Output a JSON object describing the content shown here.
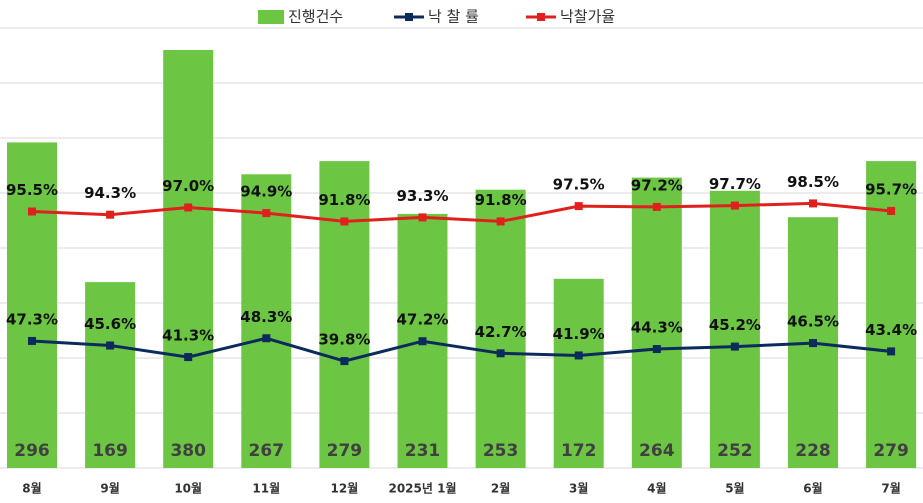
{
  "chart_data": {
    "type": "bar-line",
    "categories": [
      "8월",
      "9월",
      "10월",
      "11월",
      "12월",
      "2025년 1월",
      "2월",
      "3월",
      "4월",
      "5월",
      "6월",
      "7월"
    ],
    "series": [
      {
        "name": "진행건수",
        "type": "bar",
        "color": "#6cc644",
        "axis": "y",
        "values": [
          296,
          169,
          380,
          267,
          279,
          231,
          253,
          172,
          264,
          252,
          228,
          279
        ]
      },
      {
        "name": "낙 찰 률",
        "type": "line",
        "color": "#0d2a5c",
        "axis": "y2",
        "values": [
          47.3,
          45.6,
          41.3,
          48.3,
          39.8,
          47.2,
          42.7,
          41.9,
          44.3,
          45.2,
          46.5,
          43.4
        ],
        "value_labels": [
          "47.3%",
          "45.6%",
          "41.3%",
          "48.3%",
          "39.8%",
          "47.2%",
          "42.7%",
          "41.9%",
          "44.3%",
          "45.2%",
          "46.5%",
          "43.4%"
        ]
      },
      {
        "name": "낙찰가율",
        "type": "line",
        "color": "#e0201c",
        "axis": "y2",
        "values": [
          95.5,
          94.3,
          97.0,
          94.9,
          91.8,
          93.3,
          91.8,
          97.5,
          97.2,
          97.7,
          98.5,
          95.7
        ],
        "value_labels": [
          "95.5%",
          "94.3%",
          "97.0%",
          "94.9%",
          "91.8%",
          "93.3%",
          "91.8%",
          "97.5%",
          "97.2%",
          "97.7%",
          "98.5%",
          "95.7%"
        ]
      }
    ],
    "ylim": [
      0,
      420
    ],
    "yticks": [
      0,
      50,
      100,
      150,
      200,
      250,
      300,
      350,
      400
    ],
    "y2lim": [
      0,
      172
    ],
    "grid": true,
    "legend": "top"
  }
}
